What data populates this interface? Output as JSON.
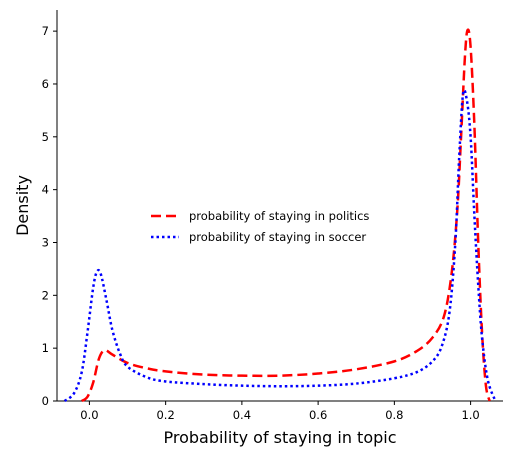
{
  "chart_data": {
    "type": "line",
    "title": "",
    "xlabel": "Probability of staying in topic",
    "ylabel": "Density",
    "xlim": [
      -0.085,
      1.085
    ],
    "ylim": [
      0,
      7.4
    ],
    "x_ticks": [
      0.0,
      0.2,
      0.4,
      0.6,
      0.8,
      1.0
    ],
    "x_tick_labels": [
      "0.0",
      "0.2",
      "0.4",
      "0.6",
      "0.8",
      "1.0"
    ],
    "y_ticks": [
      0,
      1,
      2,
      3,
      4,
      5,
      6,
      7
    ],
    "y_tick_labels": [
      "0",
      "1",
      "2",
      "3",
      "4",
      "5",
      "6",
      "7"
    ],
    "grid": false,
    "legend_position": "center-left",
    "series": [
      {
        "name": "probability of staying in politics",
        "color": "#ff0000",
        "style": "dashed",
        "points": [
          [
            -0.02,
            0.0
          ],
          [
            -0.005,
            0.08
          ],
          [
            0.01,
            0.35
          ],
          [
            0.025,
            0.8
          ],
          [
            0.04,
            0.96
          ],
          [
            0.06,
            0.88
          ],
          [
            0.1,
            0.72
          ],
          [
            0.15,
            0.62
          ],
          [
            0.2,
            0.56
          ],
          [
            0.3,
            0.5
          ],
          [
            0.4,
            0.48
          ],
          [
            0.5,
            0.48
          ],
          [
            0.6,
            0.52
          ],
          [
            0.7,
            0.6
          ],
          [
            0.8,
            0.75
          ],
          [
            0.86,
            0.95
          ],
          [
            0.9,
            1.2
          ],
          [
            0.93,
            1.6
          ],
          [
            0.95,
            2.4
          ],
          [
            0.965,
            3.6
          ],
          [
            0.975,
            5.0
          ],
          [
            0.985,
            6.5
          ],
          [
            0.992,
            7.02
          ],
          [
            1.0,
            6.7
          ],
          [
            1.01,
            5.2
          ],
          [
            1.02,
            3.0
          ],
          [
            1.03,
            1.3
          ],
          [
            1.04,
            0.3
          ],
          [
            1.05,
            0.0
          ]
        ]
      },
      {
        "name": "probability of staying in soccer",
        "color": "#0000ff",
        "style": "dotted",
        "points": [
          [
            -0.065,
            0.0
          ],
          [
            -0.04,
            0.15
          ],
          [
            -0.02,
            0.55
          ],
          [
            -0.005,
            1.3
          ],
          [
            0.01,
            2.15
          ],
          [
            0.02,
            2.45
          ],
          [
            0.03,
            2.4
          ],
          [
            0.045,
            1.9
          ],
          [
            0.06,
            1.35
          ],
          [
            0.08,
            0.9
          ],
          [
            0.1,
            0.65
          ],
          [
            0.15,
            0.45
          ],
          [
            0.2,
            0.37
          ],
          [
            0.3,
            0.32
          ],
          [
            0.4,
            0.29
          ],
          [
            0.5,
            0.28
          ],
          [
            0.6,
            0.29
          ],
          [
            0.7,
            0.33
          ],
          [
            0.8,
            0.43
          ],
          [
            0.86,
            0.55
          ],
          [
            0.9,
            0.75
          ],
          [
            0.925,
            1.05
          ],
          [
            0.945,
            1.7
          ],
          [
            0.96,
            3.0
          ],
          [
            0.97,
            4.6
          ],
          [
            0.98,
            5.8
          ],
          [
            0.99,
            5.7
          ],
          [
            1.0,
            5.0
          ],
          [
            1.01,
            3.5
          ],
          [
            1.02,
            2.2
          ],
          [
            1.03,
            1.2
          ],
          [
            1.045,
            0.4
          ],
          [
            1.065,
            0.0
          ]
        ]
      }
    ]
  }
}
